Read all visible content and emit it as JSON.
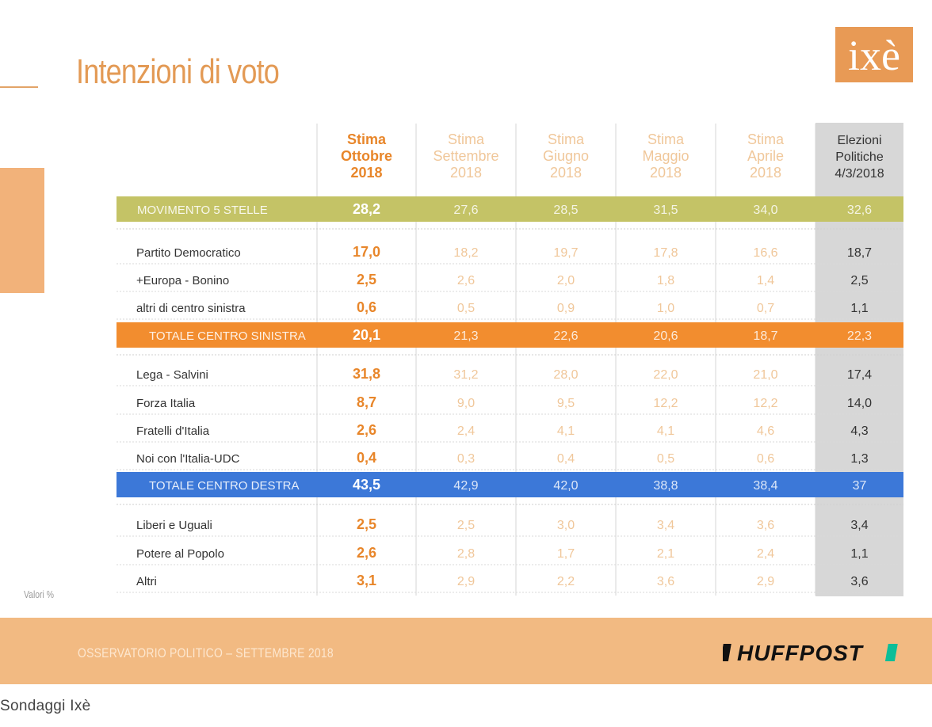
{
  "title": "Intenzioni di voto",
  "logo_text": "ixè",
  "valori_label": "Valori %",
  "footer_text": "OSSERVATORIO POLITICO – SETTEMBRE 2018",
  "footer_brand": "HUFFPOST",
  "caption": "Sondaggi Ixè",
  "colors": {
    "accent": "#e8862a",
    "light_orange": "#f0c79a",
    "m5s_band": "#c4c366",
    "csx_band": "#f28d2f",
    "cdx_band": "#3c78d8",
    "gray_col": "#d7d7d7",
    "footer": "#f2ba82"
  },
  "chart_data": {
    "type": "table",
    "title": "Intenzioni di voto",
    "columns": [
      [
        "Stima",
        "Ottobre",
        "2018"
      ],
      [
        "Stima",
        "Settembre",
        "2018"
      ],
      [
        "Stima",
        "Giugno",
        "2018"
      ],
      [
        "Stima",
        "Maggio",
        "2018"
      ],
      [
        "Stima",
        "Aprile",
        "2018"
      ],
      [
        "Elezioni",
        "Politiche",
        "4/3/2018"
      ]
    ],
    "rows": [
      {
        "label": "MOVIMENTO 5 STELLE",
        "kind": "m5s",
        "values": [
          "28,2",
          "27,6",
          "28,5",
          "31,5",
          "34,0",
          "32,6"
        ]
      },
      {
        "label": "Partito Democratico",
        "kind": "party",
        "values": [
          "17,0",
          "18,2",
          "19,7",
          "17,8",
          "16,6",
          "18,7"
        ]
      },
      {
        "label": "+Europa - Bonino",
        "kind": "party",
        "values": [
          "2,5",
          "2,6",
          "2,0",
          "1,8",
          "1,4",
          "2,5"
        ]
      },
      {
        "label": "altri di centro sinistra",
        "kind": "party",
        "values": [
          "0,6",
          "0,5",
          "0,9",
          "1,0",
          "0,7",
          "1,1"
        ]
      },
      {
        "label": "TOTALE CENTRO SINISTRA",
        "kind": "csx",
        "values": [
          "20,1",
          "21,3",
          "22,6",
          "20,6",
          "18,7",
          "22,3"
        ]
      },
      {
        "label": "Lega - Salvini",
        "kind": "party",
        "values": [
          "31,8",
          "31,2",
          "28,0",
          "22,0",
          "21,0",
          "17,4"
        ]
      },
      {
        "label": "Forza Italia",
        "kind": "party",
        "values": [
          "8,7",
          "9,0",
          "9,5",
          "12,2",
          "12,2",
          "14,0"
        ]
      },
      {
        "label": "Fratelli d'Italia",
        "kind": "party",
        "values": [
          "2,6",
          "2,4",
          "4,1",
          "4,1",
          "4,6",
          "4,3"
        ]
      },
      {
        "label": "Noi con l'Italia-UDC",
        "kind": "party",
        "values": [
          "0,4",
          "0,3",
          "0,4",
          "0,5",
          "0,6",
          "1,3"
        ]
      },
      {
        "label": "TOTALE CENTRO DESTRA",
        "kind": "cdx",
        "values": [
          "43,5",
          "42,9",
          "42,0",
          "38,8",
          "38,4",
          "37"
        ]
      },
      {
        "label": "Liberi e Uguali",
        "kind": "party",
        "values": [
          "2,5",
          "2,5",
          "3,0",
          "3,4",
          "3,6",
          "3,4"
        ]
      },
      {
        "label": "Potere al Popolo",
        "kind": "party",
        "values": [
          "2,6",
          "2,8",
          "1,7",
          "2,1",
          "2,4",
          "1,1"
        ]
      },
      {
        "label": "Altri",
        "kind": "party",
        "values": [
          "3,1",
          "2,9",
          "2,2",
          "3,6",
          "2,9",
          "3,6"
        ]
      }
    ]
  }
}
